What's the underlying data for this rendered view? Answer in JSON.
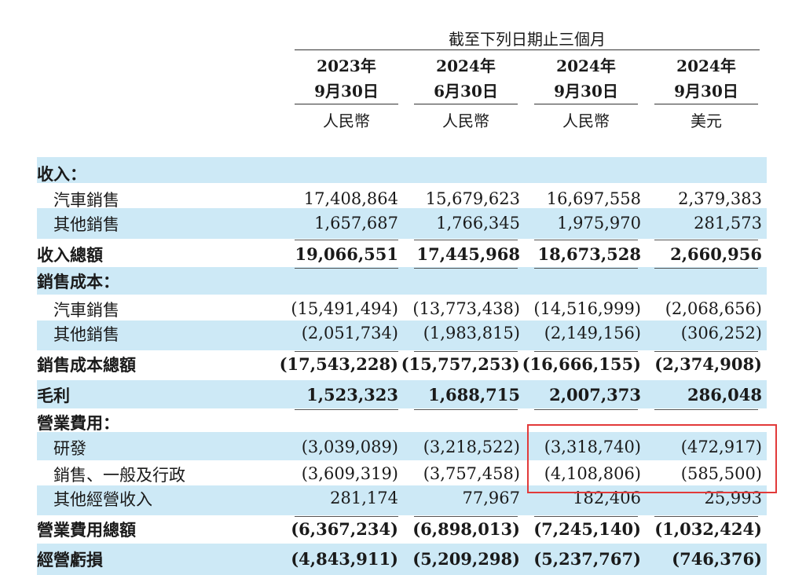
{
  "header": {
    "period_title": "截至下列日期止三個月",
    "columns": [
      {
        "year": "2023年",
        "date": "9月30日",
        "currency": "人民幣"
      },
      {
        "year": "2024年",
        "date": "6月30日",
        "currency": "人民幣"
      },
      {
        "year": "2024年",
        "date": "9月30日",
        "currency": "人民幣"
      },
      {
        "year": "2024年",
        "date": "9月30日",
        "currency": "美元"
      }
    ]
  },
  "rows": [
    {
      "label": "收入：",
      "values": [
        "",
        "",
        "",
        ""
      ],
      "style": "section",
      "band": true
    },
    {
      "label": "汽車銷售",
      "values": [
        "17,408,864",
        "15,679,623",
        "16,697,558",
        "2,379,383"
      ],
      "style": "indent",
      "band": false
    },
    {
      "label": "其他銷售",
      "values": [
        "1,657,687",
        "1,766,345",
        "1,975,970",
        "281,573"
      ],
      "style": "indent",
      "band": true
    },
    {
      "label": "收入總額",
      "values": [
        "19,066,551",
        "17,445,968",
        "18,673,528",
        "2,660,956"
      ],
      "style": "total",
      "band": false
    },
    {
      "label": "銷售成本：",
      "values": [
        "",
        "",
        "",
        ""
      ],
      "style": "section",
      "band": true
    },
    {
      "label": "汽車銷售",
      "values": [
        "(15,491,494)",
        "(13,773,438)",
        "(14,516,999)",
        "(2,068,656)"
      ],
      "style": "indent",
      "band": false
    },
    {
      "label": "其他銷售",
      "values": [
        "(2,051,734)",
        "(1,983,815)",
        "(2,149,156)",
        "(306,252)"
      ],
      "style": "indent",
      "band": true
    },
    {
      "label": "銷售成本總額",
      "values": [
        "(17,543,228)",
        "(15,757,253)",
        "(16,666,155)",
        "(2,374,908)"
      ],
      "style": "total",
      "band": false
    },
    {
      "label": "毛利",
      "values": [
        "1,523,323",
        "1,688,715",
        "2,007,373",
        "286,048"
      ],
      "style": "total",
      "band": true
    },
    {
      "label": "營業費用：",
      "values": [
        "",
        "",
        "",
        ""
      ],
      "style": "section",
      "band": false
    },
    {
      "label": "研發",
      "values": [
        "(3,039,089)",
        "(3,218,522)",
        "(3,318,740)",
        "(472,917)"
      ],
      "style": "indent",
      "band": true
    },
    {
      "label": "銷售、一般及行政",
      "values": [
        "(3,609,319)",
        "(3,757,458)",
        "(4,108,806)",
        "(585,500)"
      ],
      "style": "indent",
      "band": false
    },
    {
      "label": "其他經營收入",
      "values": [
        "281,174",
        "77,967",
        "182,406",
        "25,993"
      ],
      "style": "indent",
      "band": true
    },
    {
      "label": "營業費用總額",
      "values": [
        "(6,367,234)",
        "(6,898,013)",
        "(7,245,140)",
        "(1,032,424)"
      ],
      "style": "total",
      "band": false
    },
    {
      "label": "經營虧損",
      "values": [
        "(4,843,911)",
        "(5,209,298)",
        "(5,237,767)",
        "(746,376)"
      ],
      "style": "total",
      "band": true
    }
  ]
}
